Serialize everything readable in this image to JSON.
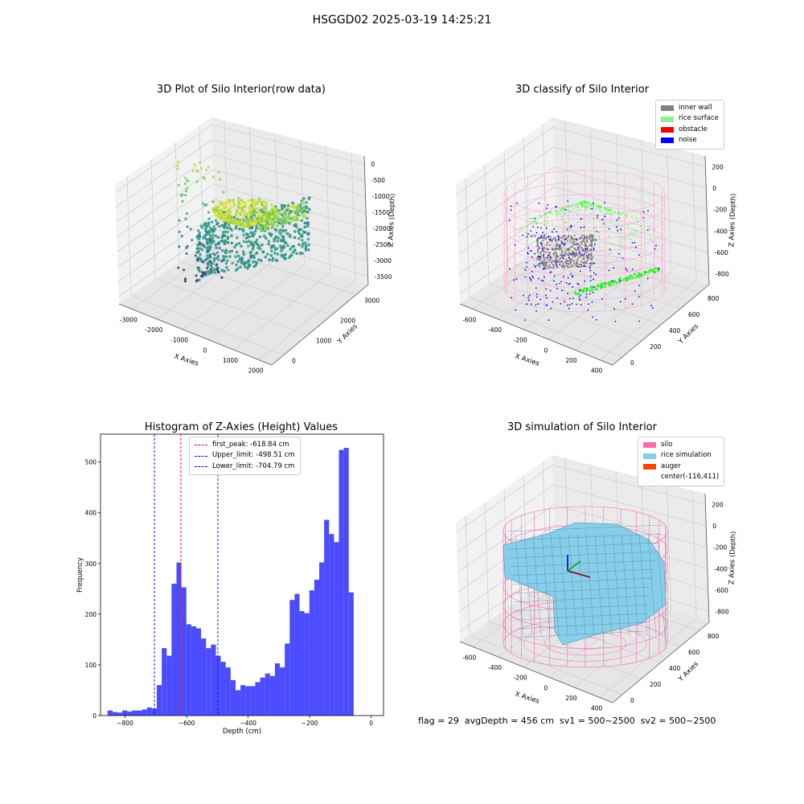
{
  "suptitle": "HSGGD02 2025-03-19 14:25:21",
  "status_line": "flag = 29  avgDepth = 456 cm  sv1 = 500~2500  sv2 = 500~2500",
  "chart_data": [
    {
      "type": "scatter3d",
      "title": "3D Plot of Silo Interior(row data)",
      "xlabel": "X Axies",
      "ylabel": "Y Axies",
      "zlabel": "Z Axies (Depth)",
      "xticks": [
        "-3000",
        "-2000",
        "-1000",
        "0",
        "1000",
        "2000"
      ],
      "yticks": [
        "0",
        "1000",
        "2000",
        "3000"
      ],
      "zticks": [
        "0",
        "-500",
        "-1000",
        "-1500",
        "-2000",
        "-2500",
        "-3000",
        "-3500"
      ],
      "colormap": "viridis"
    },
    {
      "type": "scatter3d",
      "title": "3D classify of Silo Interior",
      "xlabel": "X Axies",
      "ylabel": "Y Axies",
      "zlabel": "Z Axies (Depth)",
      "xticks": [
        "-600",
        "-400",
        "-200",
        "0",
        "200",
        "400"
      ],
      "yticks": [
        "0",
        "200",
        "400",
        "600",
        "800"
      ],
      "zticks": [
        "200",
        "0",
        "-200",
        "-400",
        "-600",
        "-800"
      ],
      "legend": [
        {
          "name": "inner wall",
          "color": "#808080"
        },
        {
          "name": "rice surface",
          "color": "#90ee90"
        },
        {
          "name": "obstacle",
          "color": "#ff0000"
        },
        {
          "name": "noise",
          "color": "#0000ff"
        }
      ],
      "legend_position": "top-right"
    },
    {
      "type": "bar",
      "title": "Histogram of Z-Axies (Height) Values",
      "xlabel": "Depth (cm)",
      "ylabel": "Frequency",
      "xlim": [
        -880,
        40
      ],
      "ylim": [
        0,
        555
      ],
      "xticks": [
        -800,
        -600,
        -400,
        -200,
        0
      ],
      "yticks": [
        0,
        100,
        200,
        300,
        400,
        500
      ],
      "bin_width": 16,
      "bin_start": -857,
      "values": [
        10,
        7,
        6,
        10,
        8,
        10,
        10,
        12,
        16,
        14,
        60,
        133,
        118,
        260,
        302,
        253,
        180,
        176,
        172,
        152,
        133,
        140,
        118,
        106,
        95,
        70,
        50,
        60,
        58,
        58,
        66,
        75,
        83,
        78,
        103,
        95,
        142,
        228,
        240,
        206,
        202,
        247,
        268,
        302,
        386,
        358,
        342,
        524,
        528,
        243
      ],
      "bar_color": "#4b4bff",
      "lines": [
        {
          "label": "first_peak: -618.84 cm",
          "x": -618.84,
          "color": "#ff0000"
        },
        {
          "label": "Upper_limit: -498.51 cm",
          "x": -498.51,
          "color": "#0000ff"
        },
        {
          "label": "Lower_limit: -704.79 cm",
          "x": -704.79,
          "color": "#0000ff"
        }
      ],
      "legend_position": "top-center"
    },
    {
      "type": "surface3d",
      "title": "3D simulation of Silo Interior",
      "xlabel": "X Axies",
      "ylabel": "Y Axies",
      "zlabel": "Z Axies (Depth)",
      "xticks": [
        "-600",
        "-400",
        "-200",
        "0",
        "200",
        "400"
      ],
      "yticks": [
        "0",
        "200",
        "400",
        "600",
        "800"
      ],
      "zticks": [
        "200",
        "0",
        "-200",
        "-400",
        "-600",
        "-800"
      ],
      "legend": [
        {
          "name": "silo",
          "color": "#ff69b4"
        },
        {
          "name": "rice simulation",
          "color": "#87ceeb"
        },
        {
          "name": "auger",
          "color": "#ff4500"
        },
        {
          "name": "center(-116,411)",
          "color": ""
        }
      ],
      "legend_position": "top-right"
    }
  ]
}
